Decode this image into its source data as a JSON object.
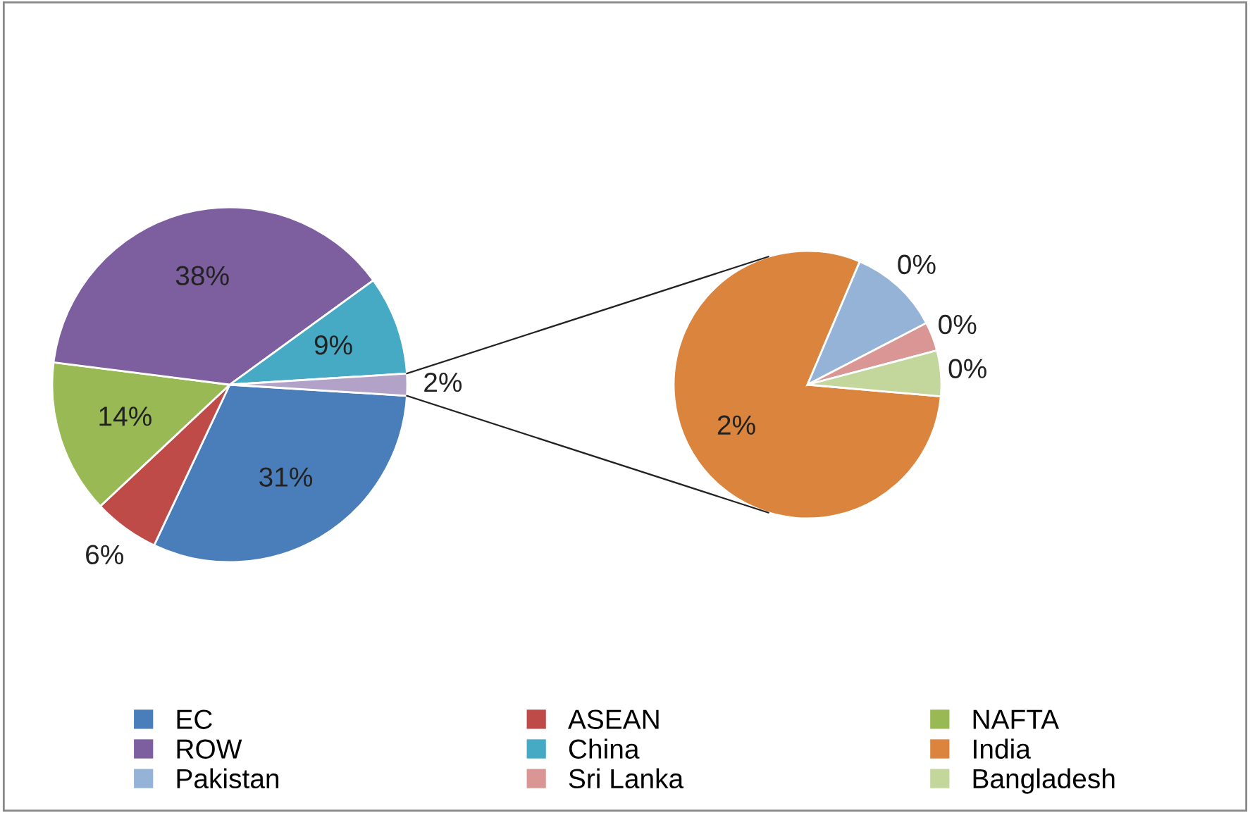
{
  "chart_data": [
    {
      "type": "pie",
      "categories": [
        "EC",
        "ASEAN",
        "NAFTA",
        "ROW",
        "China",
        null
      ],
      "values": [
        31,
        6,
        14,
        38,
        9,
        2
      ],
      "colors": [
        "#4a7ebb",
        "#be4b48",
        "#98b954",
        "#7d5fa0",
        "#46aac5",
        "#b3a2c7"
      ],
      "value_labels": [
        "31%",
        "6%",
        "14%",
        "38%",
        "9%",
        "2%"
      ],
      "legend": "bottom"
    },
    {
      "type": "pie",
      "categories": [
        "India",
        "Pakistan",
        "Sri Lanka",
        "Bangladesh"
      ],
      "values": [
        1.6,
        0.22,
        0.07,
        0.11
      ],
      "colors": [
        "#db843d",
        "#95b3d7",
        "#d99694",
        "#c3d69b"
      ],
      "value_labels": [
        "2%",
        "0%",
        "0%",
        "0%"
      ],
      "legend": "bottom"
    }
  ]
}
